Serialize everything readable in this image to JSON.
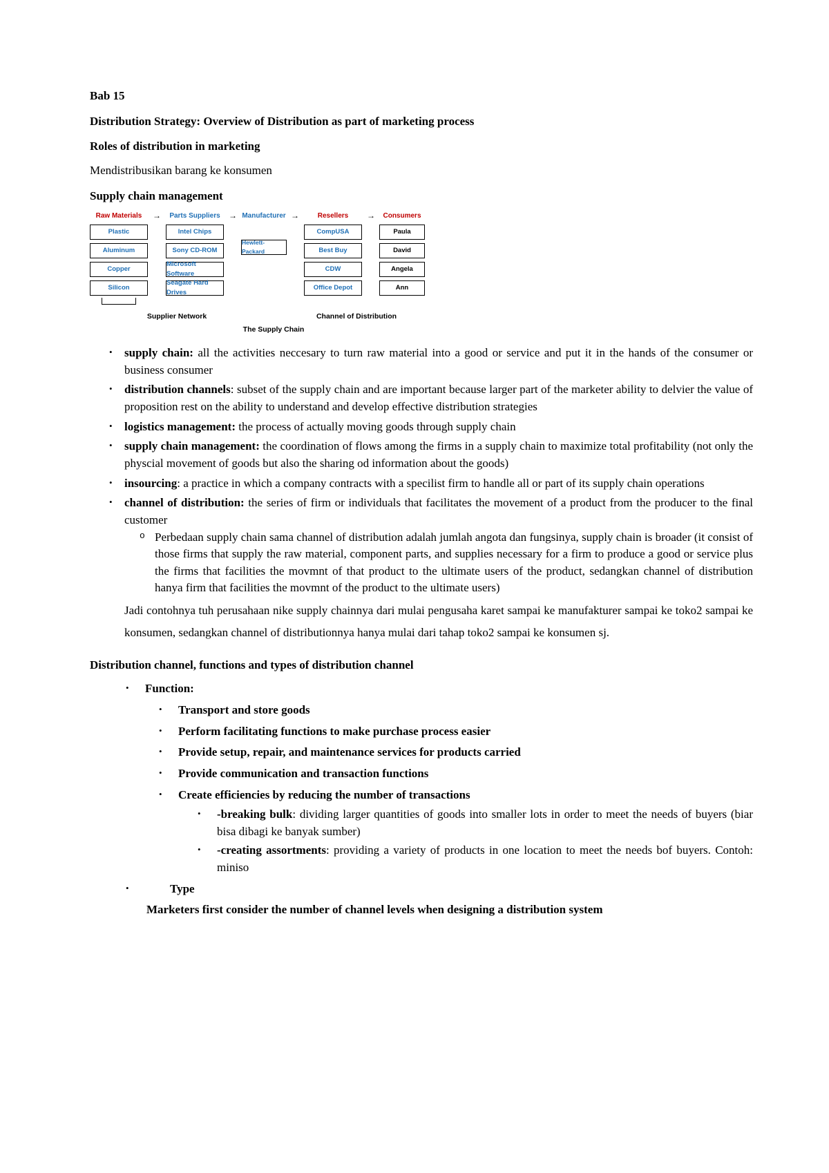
{
  "doc": {
    "bab": "Bab 15",
    "title": "Distribution Strategy: Overview of Distribution as part of marketing process",
    "roles_hdr": "Roles of distribution in marketing",
    "roles_txt": "Mendistribusikan barang ke konsumen",
    "scm_hdr": "Supply chain management"
  },
  "diagram": {
    "headers": {
      "raw": "Raw Materials",
      "parts": "Parts Suppliers",
      "mfr": "Manufacturer",
      "resellers": "Resellers",
      "consumers": "Consumers"
    },
    "header_colors": {
      "raw": "#c00000",
      "parts": "#1f6fb5",
      "mfr": "#1f6fb5",
      "resellers": "#c00000",
      "consumers": "#c00000"
    },
    "cols": {
      "raw": [
        "Plastic",
        "Aluminum",
        "Copper",
        "Silicon"
      ],
      "parts": [
        "Intel Chips",
        "Sony CD-ROM",
        "Microsoft Software",
        "Seagate Hard Drives"
      ],
      "mfr": [
        "Hewlett-Packard"
      ],
      "resellers": [
        "CompUSA",
        "Best Buy",
        "CDW",
        "Office Depot"
      ],
      "consumers": [
        "Paula",
        "David",
        "Angela",
        "Ann"
      ]
    },
    "box_text_colors": {
      "raw": "#1f6fb5",
      "parts": "#1f6fb5",
      "mfr": "#1f6fb5",
      "resellers": "#1f6fb5",
      "consumers": "#000000"
    },
    "footer_left": "Supplier Network",
    "footer_right": "Channel of Distribution",
    "caption": "The Supply Chain"
  },
  "defs": [
    {
      "term": "supply chain:",
      "text": " all the activities neccesary to turn raw material into a good or service and put it in the hands of the consumer or business consumer"
    },
    {
      "term": "distribution channels",
      "text": ": subset of the supply chain and are important because larger part of the marketer ability to delvier the value of proposition rest on the ability to understand and develop effective distribution strategies"
    },
    {
      "term": "logistics management:",
      "text": " the process of actually moving goods through supply chain"
    },
    {
      "term": "supply chain management:",
      "text": " the coordination of flows among the firms in a supply chain to maximize total profitability (not only the physcial movement of goods but also the sharing od information about the goods)"
    },
    {
      "term": "insourcing",
      "text": ": a practice in which a company contracts with a specilist firm to handle all or part of its supply chain operations"
    },
    {
      "term": "channel of distribution:",
      "text": " the series of firm or individuals that facilitates the movement of a product from the producer to the final customer",
      "sub": "Perbedaan supply chain sama channel of distribution adalah jumlah angota dan fungsinya, supply chain is broader (it consist of those firms that supply the raw material, component parts, and supplies necessary for a firm to produce a good or service plus the firms that facilities the movmnt of that product to the ultimate users of the product, sedangkan channel of distribution hanya firm that facilities the movmnt of the product to the ultimate users)"
    }
  ],
  "example": "Jadi contohnya tuh perusahaan nike supply chainnya dari mulai pengusaha karet sampai ke manufakturer sampai ke toko2 sampai ke konsumen, sedangkan channel of distributionnya hanya mulai dari tahap toko2 sampai ke konsumen sj.",
  "dc": {
    "hdr": "Distribution channel, functions and types of distribution channel",
    "fn_label": "Function:",
    "fns": [
      "Transport and store goods",
      "Perform facilitating functions to make purchase process easier",
      "Provide setup, repair, and maintenance services for products carried",
      "Provide communication and transaction functions",
      "Create efficiencies by reducing the number of transactions"
    ],
    "eff": [
      {
        "b": "-breaking bulk",
        "t": ": dividing larger quantities of goods into smaller lots in order to meet the needs of buyers (biar bisa dibagi ke banyak sumber)"
      },
      {
        "b": "-creating assortments",
        "t": ": providing a variety of products in one location to meet the needs bof buyers. Contoh: miniso"
      }
    ],
    "type_label": "Type",
    "type_text": "Marketers first consider the number of channel levels when designing a distribution system"
  }
}
